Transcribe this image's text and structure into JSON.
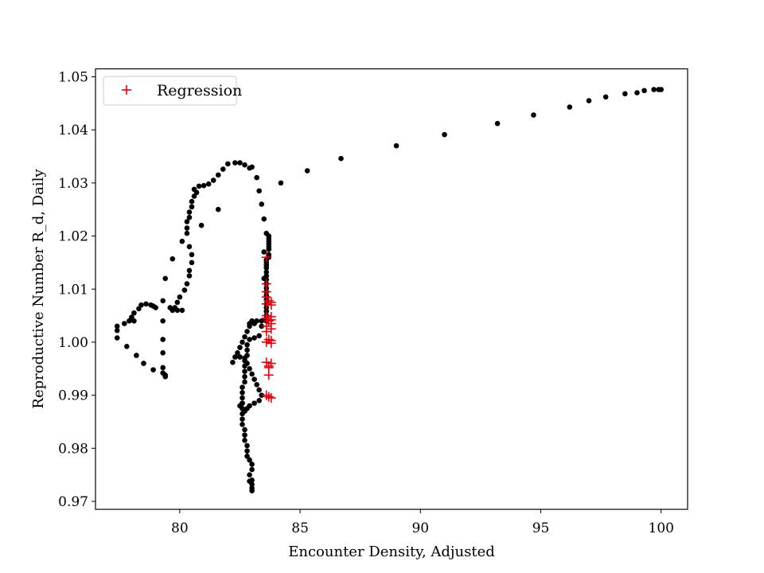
{
  "chart_data": {
    "type": "scatter",
    "xlabel": "Encounter Density, Adjusted",
    "ylabel": "Reproductive Number R_d, Daily",
    "xlim": [
      76.5,
      101.1
    ],
    "ylim": [
      0.9685,
      1.0515
    ],
    "xticks": [
      80,
      85,
      90,
      95,
      100
    ],
    "yticks": [
      0.97,
      0.98,
      0.99,
      1.0,
      1.01,
      1.02,
      1.03,
      1.04,
      1.05
    ],
    "ytick_labels": [
      "0.97",
      "0.98",
      "0.99",
      "1.00",
      "1.01",
      "1.02",
      "1.03",
      "1.04",
      "1.05"
    ],
    "grid": false,
    "legend_position": "top-left",
    "colors": {
      "observed": "#000000",
      "regression": "#e8000b"
    },
    "series": [
      {
        "marker": "dot",
        "points": [
          [
            100.0,
            1.0476
          ],
          [
            99.9,
            1.0476
          ],
          [
            99.7,
            1.0476
          ],
          [
            99.3,
            1.0474
          ],
          [
            99.0,
            1.047
          ],
          [
            98.5,
            1.0468
          ],
          [
            97.7,
            1.0462
          ],
          [
            97.0,
            1.0455
          ],
          [
            96.2,
            1.0443
          ],
          [
            94.7,
            1.0428
          ],
          [
            93.2,
            1.0412
          ],
          [
            91.0,
            1.0391
          ],
          [
            89.0,
            1.037
          ],
          [
            86.7,
            1.0346
          ],
          [
            85.3,
            1.0323
          ],
          [
            84.2,
            1.03
          ],
          [
            82.3,
            1.0338
          ],
          [
            82.5,
            1.0338
          ],
          [
            82.7,
            1.0334
          ],
          [
            82.9,
            1.0328
          ],
          [
            82.0,
            1.0336
          ],
          [
            81.8,
            1.0326
          ],
          [
            81.6,
            1.0315
          ],
          [
            81.4,
            1.0305
          ],
          [
            81.2,
            1.0298
          ],
          [
            81.0,
            1.0295
          ],
          [
            80.8,
            1.0294
          ],
          [
            80.6,
            1.0288
          ],
          [
            80.7,
            1.0282
          ],
          [
            80.6,
            1.0275
          ],
          [
            80.5,
            1.0265
          ],
          [
            80.5,
            1.0255
          ],
          [
            80.4,
            1.0245
          ],
          [
            80.4,
            1.0235
          ],
          [
            80.3,
            1.0227
          ],
          [
            80.9,
            1.022
          ],
          [
            81.6,
            1.025
          ],
          [
            80.3,
            1.0215
          ],
          [
            80.3,
            1.0205
          ],
          [
            80.1,
            1.019
          ],
          [
            80.4,
            1.018
          ],
          [
            80.5,
            1.0165
          ],
          [
            80.5,
            1.015
          ],
          [
            80.4,
            1.0135
          ],
          [
            80.4,
            1.0125
          ],
          [
            80.3,
            1.011
          ],
          [
            80.2,
            1.0098
          ],
          [
            80.0,
            1.0085
          ],
          [
            79.9,
            1.0075
          ],
          [
            79.8,
            1.0065
          ],
          [
            79.7,
            1.006
          ],
          [
            79.6,
            1.0065
          ],
          [
            79.9,
            1.006
          ],
          [
            80.1,
            1.006
          ],
          [
            79.4,
            1.012
          ],
          [
            79.7,
            1.0157
          ],
          [
            79.3,
            1.0078
          ],
          [
            79.0,
            1.0065
          ],
          [
            78.9,
            1.0068
          ],
          [
            78.8,
            1.007
          ],
          [
            78.6,
            1.0072
          ],
          [
            78.4,
            1.007
          ],
          [
            78.3,
            1.0063
          ],
          [
            78.1,
            1.0055
          ],
          [
            78.0,
            1.0047
          ],
          [
            77.9,
            1.004
          ],
          [
            77.7,
            1.0035
          ],
          [
            78.1,
            1.004
          ],
          [
            77.4,
            1.003
          ],
          [
            77.4,
            1.0022
          ],
          [
            77.4,
            1.0008
          ],
          [
            77.8,
            0.9992
          ],
          [
            78.2,
            0.9975
          ],
          [
            78.5,
            0.996
          ],
          [
            78.9,
            0.9948
          ],
          [
            79.3,
            0.9942
          ],
          [
            79.4,
            0.9938
          ],
          [
            79.4,
            0.9935
          ],
          [
            79.3,
            0.9952
          ],
          [
            79.3,
            0.998
          ],
          [
            79.3,
            1.0005
          ],
          [
            79.3,
            1.004
          ],
          [
            83.0,
            1.033
          ],
          [
            83.2,
            1.031
          ],
          [
            83.3,
            1.0285
          ],
          [
            83.4,
            1.026
          ],
          [
            83.5,
            1.0232
          ],
          [
            83.6,
            1.0205
          ],
          [
            83.5,
            1.017
          ],
          [
            83.6,
            1.0145
          ],
          [
            83.5,
            1.012
          ],
          [
            83.7,
            1.02
          ],
          [
            83.7,
            1.0195
          ],
          [
            83.7,
            1.019
          ],
          [
            83.7,
            1.0185
          ],
          [
            83.7,
            1.018
          ],
          [
            83.7,
            1.0175
          ],
          [
            83.7,
            1.0165
          ],
          [
            83.7,
            1.016
          ],
          [
            83.6,
            1.0155
          ],
          [
            83.6,
            1.015
          ],
          [
            83.6,
            1.014
          ],
          [
            83.6,
            1.0132
          ],
          [
            83.6,
            1.0125
          ],
          [
            83.6,
            1.0118
          ],
          [
            83.6,
            1.011
          ],
          [
            83.6,
            1.0102
          ],
          [
            83.6,
            1.0095
          ],
          [
            83.6,
            1.0088
          ],
          [
            83.6,
            1.008
          ],
          [
            83.6,
            1.0072
          ],
          [
            83.6,
            1.0065
          ],
          [
            83.6,
            1.0058
          ],
          [
            83.6,
            1.005
          ],
          [
            83.6,
            1.0043
          ],
          [
            83.6,
            1.004
          ],
          [
            83.4,
            1.004
          ],
          [
            83.2,
            1.004
          ],
          [
            83.1,
            1.0035
          ],
          [
            82.9,
            1.003
          ],
          [
            82.8,
            1.002
          ],
          [
            82.7,
            1.001
          ],
          [
            82.6,
            1.0
          ],
          [
            82.5,
            0.999
          ],
          [
            82.4,
            0.998
          ],
          [
            82.3,
            0.9972
          ],
          [
            82.2,
            0.9962
          ],
          [
            82.5,
            0.9972
          ],
          [
            82.7,
            0.997
          ],
          [
            82.8,
            0.996
          ],
          [
            82.9,
            0.995
          ],
          [
            83.0,
            0.994
          ],
          [
            83.1,
            0.993
          ],
          [
            83.2,
            0.992
          ],
          [
            83.3,
            0.991
          ],
          [
            83.4,
            0.99
          ],
          [
            83.3,
            0.989
          ],
          [
            83.1,
            0.9885
          ],
          [
            82.9,
            0.988
          ],
          [
            82.8,
            0.9875
          ],
          [
            82.7,
            0.987
          ],
          [
            82.6,
            0.9875
          ],
          [
            82.5,
            0.988
          ],
          [
            82.6,
            0.9885
          ],
          [
            82.6,
            0.9895
          ],
          [
            82.6,
            0.9905
          ],
          [
            82.6,
            0.9915
          ],
          [
            82.7,
            0.9925
          ],
          [
            82.7,
            0.9935
          ],
          [
            82.7,
            0.9945
          ],
          [
            82.7,
            0.9955
          ],
          [
            82.7,
            0.9965
          ],
          [
            82.8,
            0.9975
          ],
          [
            82.8,
            0.9985
          ],
          [
            82.8,
            0.9995
          ],
          [
            82.9,
            1.0005
          ],
          [
            83.1,
            1.0008
          ],
          [
            83.3,
            1.0012
          ],
          [
            83.4,
            1.003
          ],
          [
            83.0,
            1.004
          ],
          [
            82.9,
            1.0035
          ],
          [
            82.6,
            0.9885
          ],
          [
            82.6,
            0.9875
          ],
          [
            82.6,
            0.9865
          ],
          [
            82.6,
            0.9855
          ],
          [
            82.6,
            0.9845
          ],
          [
            82.7,
            0.9835
          ],
          [
            82.7,
            0.9825
          ],
          [
            82.7,
            0.9815
          ],
          [
            82.8,
            0.9805
          ],
          [
            82.8,
            0.9795
          ],
          [
            82.8,
            0.9785
          ],
          [
            82.9,
            0.9778
          ],
          [
            83.0,
            0.977
          ],
          [
            83.0,
            0.976
          ],
          [
            82.9,
            0.975
          ],
          [
            83.0,
            0.974
          ],
          [
            82.9,
            0.9738
          ],
          [
            83.0,
            0.9725
          ],
          [
            83.0,
            0.972
          ],
          [
            83.0,
            0.9732
          ]
        ]
      },
      {
        "name": "Regression",
        "marker": "plus",
        "points": [
          [
            83.6,
            1.016
          ],
          [
            83.6,
            1.011
          ],
          [
            83.6,
            1.0095
          ],
          [
            83.6,
            1.0085
          ],
          [
            83.7,
            1.0078
          ],
          [
            83.8,
            1.0075
          ],
          [
            83.6,
            1.0072
          ],
          [
            83.8,
            1.007
          ],
          [
            83.6,
            1.005
          ],
          [
            83.8,
            1.0048
          ],
          [
            83.6,
            1.0045
          ],
          [
            83.8,
            1.0042
          ],
          [
            83.7,
            1.004
          ],
          [
            83.8,
            1.0035
          ],
          [
            83.6,
            1.003
          ],
          [
            83.8,
            1.0025
          ],
          [
            83.6,
            1.002
          ],
          [
            83.7,
            1.0005
          ],
          [
            83.8,
            1.0003
          ],
          [
            83.6,
            1.0
          ],
          [
            83.8,
            0.9998
          ],
          [
            83.6,
            0.9962
          ],
          [
            83.8,
            0.996
          ],
          [
            83.7,
            0.9955
          ],
          [
            83.7,
            0.9952
          ],
          [
            83.7,
            0.9938
          ],
          [
            83.6,
            0.99
          ],
          [
            83.7,
            0.9897
          ],
          [
            83.8,
            0.9895
          ]
        ]
      }
    ]
  }
}
